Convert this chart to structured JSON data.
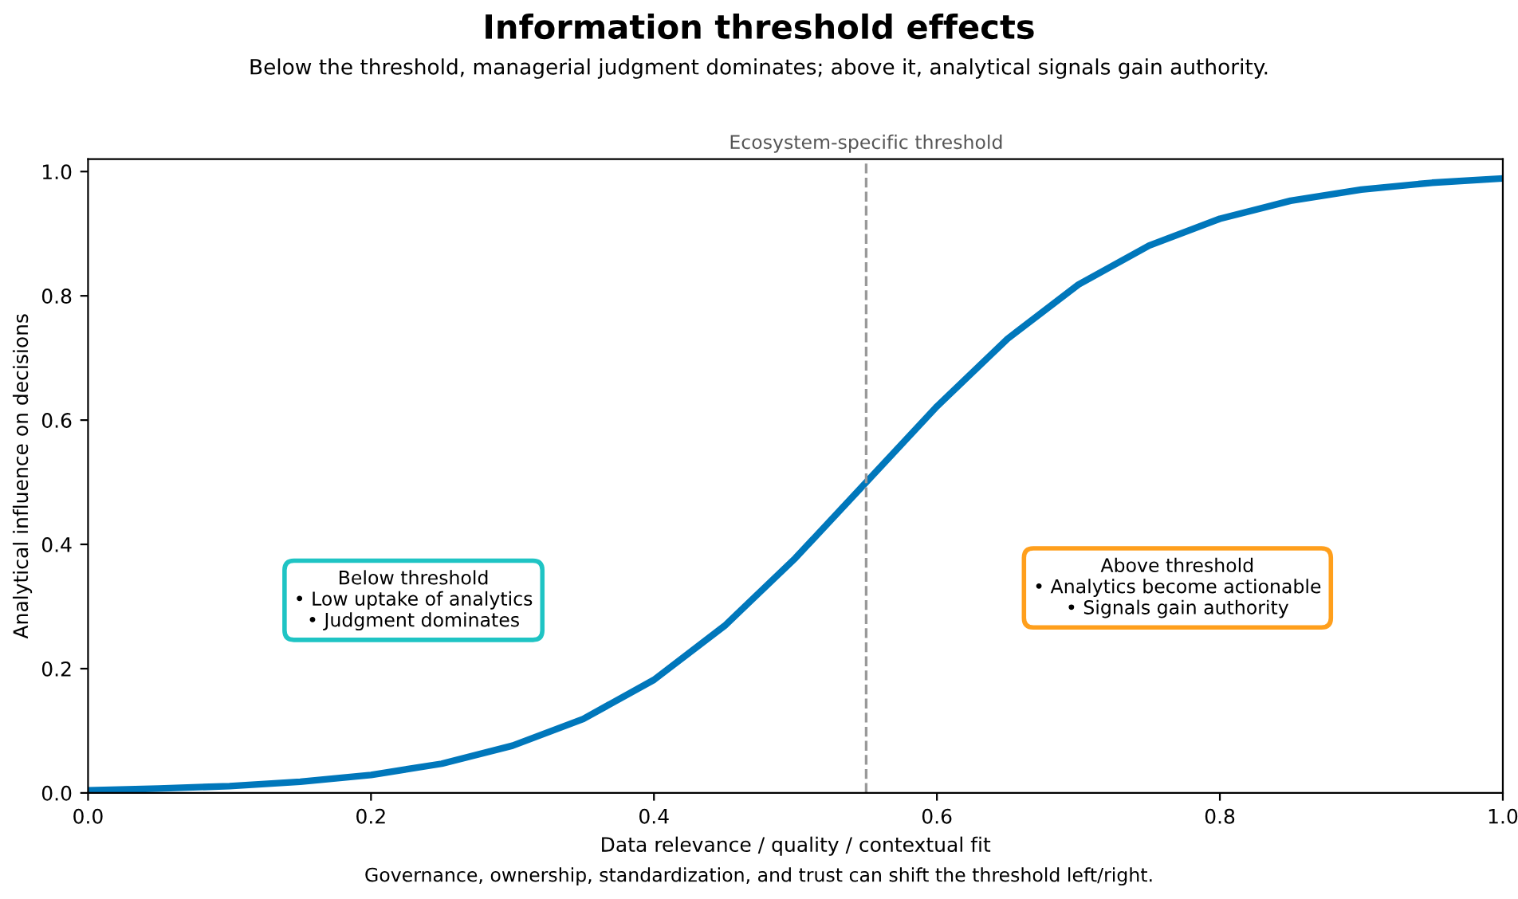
{
  "chart_data": {
    "type": "line",
    "title": "Information threshold effects",
    "subtitle": "Below the threshold, managerial judgment dominates; above it, analytical signals gain authority.",
    "xlabel": "Data relevance / quality / contextual fit",
    "ylabel": "Analytical influence on decisions",
    "x": [
      0,
      0.05,
      0.1,
      0.15,
      0.2,
      0.25,
      0.3,
      0.35,
      0.4,
      0.45,
      0.5,
      0.55,
      0.6,
      0.65,
      0.7,
      0.75,
      0.8,
      0.85,
      0.9,
      0.95,
      1.0
    ],
    "series": [
      {
        "color": "#0077bb",
        "values": [
          0.004,
          0.007,
          0.011,
          0.018,
          0.029,
          0.047,
          0.076,
          0.119,
          0.182,
          0.269,
          0.378,
          0.5,
          0.622,
          0.731,
          0.818,
          0.881,
          0.924,
          0.953,
          0.971,
          0.982,
          0.989
        ]
      }
    ],
    "xlim": [
      0,
      1
    ],
    "ylim": [
      0,
      1.02
    ],
    "xticks": [
      {
        "value": 0,
        "label": "0.0"
      },
      {
        "value": 0.2,
        "label": "0.2"
      },
      {
        "value": 0.4,
        "label": "0.4"
      },
      {
        "value": 0.6,
        "label": "0.6"
      },
      {
        "value": 0.8,
        "label": "0.8"
      },
      {
        "value": 1,
        "label": "1.0"
      }
    ],
    "yticks": [
      {
        "value": 0,
        "label": "0.0"
      },
      {
        "value": 0.2,
        "label": "0.2"
      },
      {
        "value": 0.4,
        "label": "0.4"
      },
      {
        "value": 0.6,
        "label": "0.6"
      },
      {
        "value": 0.8,
        "label": "0.8"
      },
      {
        "value": 1,
        "label": "1.0"
      }
    ],
    "ref_lines": [
      {
        "axis": "x",
        "value": 0.55,
        "label": "Ecosystem-specific threshold",
        "color": "#999999",
        "line_style": "dashed"
      }
    ],
    "annotations": [
      "Below threshold\n• Low uptake of analytics\n• Judgment dominates",
      "Above threshold\n• Analytics become actionable\n• Signals gain authority",
      "Governance, ownership, standardization, and trust can shift the threshold left/right."
    ],
    "grid": false,
    "legend": false,
    "line_style": "solid",
    "marker": "none"
  }
}
